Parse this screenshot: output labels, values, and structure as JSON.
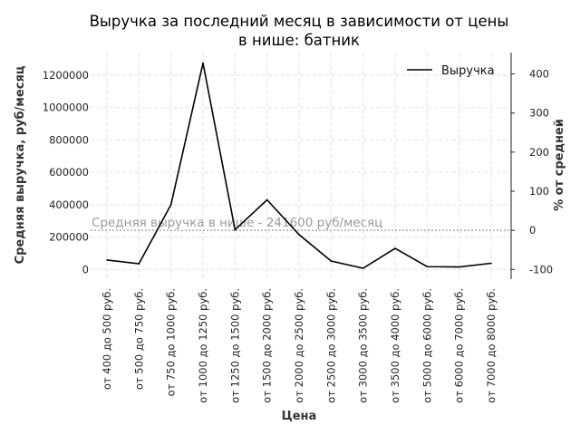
{
  "chart_data": {
    "type": "line",
    "title": "Выручка за последний месяц в зависимости от цены в нише: батник",
    "title_lines": [
      "Выручка за последний месяц в зависимости от цены",
      "в нише: батник"
    ],
    "xlabel": "Цена",
    "ylabel": "Средняя выручка, руб/месяц",
    "y2label": "% от средней",
    "categories": [
      "от 400 до 500 руб.",
      "от 500 до 750 руб.",
      "от 750 до 1000 руб.",
      "от 1000 до 1250 руб.",
      "от 1250 до 1500 руб.",
      "от 1500 до 2000 руб.",
      "от 2000 до 2500 руб.",
      "от 2500 до 3000 руб.",
      "от 3000 до 3500 руб.",
      "от 3500 до 4000 руб.",
      "от 5000 до 6000 руб.",
      "от 6000 до 7000 руб.",
      "от 7000 до 8000 руб."
    ],
    "series": [
      {
        "name": "Выручка",
        "color": "#000000",
        "values": [
          58000,
          35000,
          400000,
          1275000,
          245000,
          430000,
          215000,
          52000,
          7000,
          130000,
          17000,
          15000,
          38000
        ]
      }
    ],
    "ylim": [
      -60000,
      1340000
    ],
    "y_ticks": [
      0,
      200000,
      400000,
      600000,
      800000,
      1000000,
      1200000
    ],
    "y2_ticks": [
      -100,
      0,
      100,
      200,
      300,
      400
    ],
    "average": {
      "value": 241600,
      "label": "Средняя выручка в нише - 241600 руб/месяц",
      "color": "#9a9a9a"
    },
    "grid": true,
    "legend": "top-right"
  }
}
